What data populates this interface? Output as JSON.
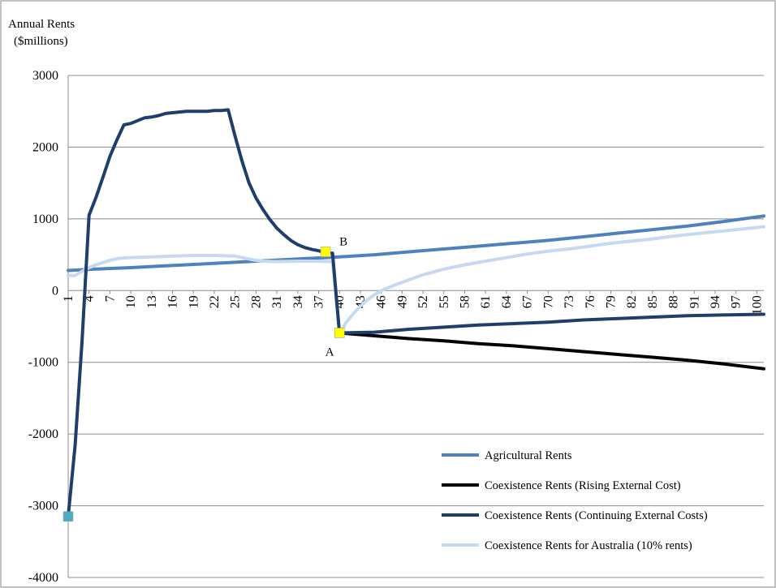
{
  "chart_data": {
    "type": "line",
    "title": "",
    "ylabel_lines": [
      "Annual Rents",
      "($millions)"
    ],
    "xlabel": "",
    "ylim": [
      -4000,
      3000
    ],
    "yticks": [
      3000,
      2000,
      1000,
      0,
      -1000,
      -2000,
      -3000,
      -4000
    ],
    "ytick_labels": [
      "3000",
      "2000",
      "1000",
      "0",
      "-1000",
      "-2000",
      "-3000",
      "-4000"
    ],
    "xlim": [
      1,
      101
    ],
    "xticks": [
      1,
      4,
      7,
      10,
      13,
      16,
      19,
      22,
      25,
      28,
      31,
      34,
      37,
      40,
      43,
      46,
      49,
      52,
      55,
      58,
      61,
      64,
      67,
      70,
      73,
      76,
      79,
      82,
      85,
      88,
      91,
      94,
      97,
      100
    ],
    "xtick_labels": [
      "1",
      "4",
      "7",
      "10",
      "13",
      "16",
      "19",
      "22",
      "25",
      "28",
      "31",
      "34",
      "37",
      "40",
      "43",
      "46",
      "49",
      "52",
      "55",
      "58",
      "61",
      "64",
      "67",
      "70",
      "73",
      "76",
      "79",
      "82",
      "85",
      "88",
      "91",
      "94",
      "97",
      "100"
    ],
    "grid": "horizontal",
    "legend_position": "bottom-right",
    "series": [
      {
        "name": "Agricultural Rents",
        "color": "#4f81bd",
        "points": [
          [
            1,
            280
          ],
          [
            5,
            300
          ],
          [
            10,
            320
          ],
          [
            15,
            345
          ],
          [
            20,
            370
          ],
          [
            25,
            395
          ],
          [
            30,
            420
          ],
          [
            35,
            445
          ],
          [
            40,
            470
          ],
          [
            45,
            500
          ],
          [
            50,
            540
          ],
          [
            55,
            580
          ],
          [
            60,
            620
          ],
          [
            65,
            660
          ],
          [
            70,
            700
          ],
          [
            75,
            750
          ],
          [
            80,
            800
          ],
          [
            85,
            850
          ],
          [
            90,
            900
          ],
          [
            95,
            960
          ],
          [
            101,
            1040
          ]
        ]
      },
      {
        "name": "Coexistence Rents (Rising External Cost)",
        "color": "#000000",
        "points": [
          [
            40,
            -590
          ],
          [
            45,
            -630
          ],
          [
            50,
            -670
          ],
          [
            55,
            -700
          ],
          [
            60,
            -740
          ],
          [
            65,
            -770
          ],
          [
            70,
            -810
          ],
          [
            75,
            -850
          ],
          [
            80,
            -890
          ],
          [
            85,
            -930
          ],
          [
            90,
            -970
          ],
          [
            95,
            -1020
          ],
          [
            101,
            -1090
          ]
        ]
      },
      {
        "name": "Coexistence Rents (Continuing External Costs)",
        "color": "#1f3e6b",
        "points": [
          [
            1,
            -3150
          ],
          [
            2,
            -2150
          ],
          [
            3,
            -700
          ],
          [
            4,
            1050
          ],
          [
            5,
            1300
          ],
          [
            6,
            1580
          ],
          [
            7,
            1870
          ],
          [
            8,
            2100
          ],
          [
            9,
            2310
          ],
          [
            10,
            2330
          ],
          [
            11,
            2370
          ],
          [
            12,
            2410
          ],
          [
            13,
            2420
          ],
          [
            14,
            2440
          ],
          [
            15,
            2470
          ],
          [
            16,
            2480
          ],
          [
            17,
            2490
          ],
          [
            18,
            2500
          ],
          [
            19,
            2500
          ],
          [
            20,
            2500
          ],
          [
            21,
            2500
          ],
          [
            22,
            2510
          ],
          [
            23,
            2510
          ],
          [
            24,
            2520
          ],
          [
            25,
            2150
          ],
          [
            26,
            1800
          ],
          [
            27,
            1500
          ],
          [
            28,
            1290
          ],
          [
            29,
            1130
          ],
          [
            30,
            990
          ],
          [
            31,
            870
          ],
          [
            32,
            780
          ],
          [
            33,
            700
          ],
          [
            34,
            640
          ],
          [
            35,
            600
          ],
          [
            36,
            575
          ],
          [
            37,
            555
          ],
          [
            38,
            530
          ],
          [
            39,
            520
          ],
          [
            40,
            -590
          ],
          [
            45,
            -580
          ],
          [
            50,
            -540
          ],
          [
            55,
            -510
          ],
          [
            60,
            -480
          ],
          [
            65,
            -460
          ],
          [
            70,
            -440
          ],
          [
            75,
            -410
          ],
          [
            80,
            -390
          ],
          [
            85,
            -370
          ],
          [
            90,
            -350
          ],
          [
            95,
            -340
          ],
          [
            101,
            -330
          ]
        ]
      },
      {
        "name": "Coexistence Rents for Australia (10% rents)",
        "color": "#c6d9f1",
        "points": [
          [
            1,
            210
          ],
          [
            2,
            210
          ],
          [
            3,
            270
          ],
          [
            4,
            320
          ],
          [
            5,
            360
          ],
          [
            6,
            390
          ],
          [
            7,
            420
          ],
          [
            8,
            445
          ],
          [
            9,
            455
          ],
          [
            10,
            460
          ],
          [
            13,
            470
          ],
          [
            16,
            480
          ],
          [
            19,
            490
          ],
          [
            22,
            490
          ],
          [
            25,
            480
          ],
          [
            26,
            460
          ],
          [
            27,
            440
          ],
          [
            28,
            420
          ],
          [
            29,
            410
          ],
          [
            31,
            405
          ],
          [
            34,
            410
          ],
          [
            37,
            410
          ],
          [
            39,
            405
          ],
          [
            40,
            -590
          ],
          [
            41,
            -440
          ],
          [
            42,
            -320
          ],
          [
            43,
            -220
          ],
          [
            44,
            -130
          ],
          [
            45,
            -60
          ],
          [
            46,
            0
          ],
          [
            48,
            80
          ],
          [
            50,
            150
          ],
          [
            52,
            220
          ],
          [
            55,
            300
          ],
          [
            58,
            360
          ],
          [
            61,
            410
          ],
          [
            64,
            460
          ],
          [
            67,
            510
          ],
          [
            70,
            550
          ],
          [
            73,
            580
          ],
          [
            76,
            620
          ],
          [
            79,
            660
          ],
          [
            82,
            690
          ],
          [
            85,
            720
          ],
          [
            88,
            760
          ],
          [
            91,
            790
          ],
          [
            94,
            820
          ],
          [
            97,
            850
          ],
          [
            101,
            890
          ]
        ]
      }
    ],
    "markers": [
      {
        "x": 1,
        "y": -3150,
        "color": "#4bacc6",
        "label": ""
      },
      {
        "x": 38,
        "y": 540,
        "color": "#ffff00",
        "label": "B"
      },
      {
        "x": 40,
        "y": -590,
        "color": "#ffff00",
        "label": "A"
      }
    ]
  }
}
